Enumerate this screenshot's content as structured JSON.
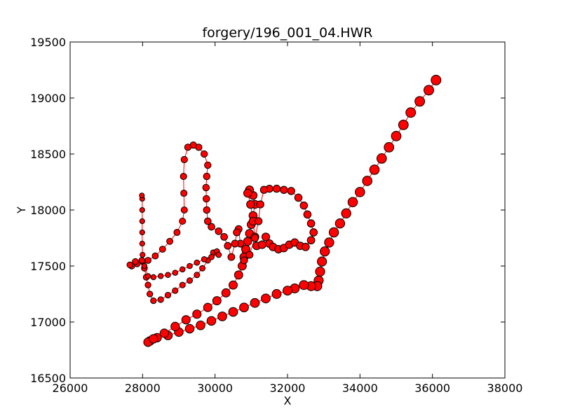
{
  "chart_data": {
    "type": "scatter",
    "title": "forgery/196_001_04.HWR",
    "xlabel": "X",
    "ylabel": "Y",
    "xlim": [
      26000,
      38000
    ],
    "ylim": [
      16500,
      19500
    ],
    "xticks": [
      26000,
      28000,
      30000,
      32000,
      34000,
      36000,
      38000
    ],
    "yticks": [
      16500,
      17000,
      17500,
      18000,
      18500,
      19000,
      19500
    ],
    "grid": false,
    "marker_face_color": "#ff0000",
    "marker_edge_color": "#000000",
    "line_color": "#ff0000",
    "series": [
      {
        "points": [
          [
            36100,
            19160
          ],
          [
            35900,
            19070
          ],
          [
            35650,
            18970
          ],
          [
            35400,
            18870
          ],
          [
            35200,
            18760
          ],
          [
            35000,
            18660
          ],
          [
            34800,
            18560
          ],
          [
            34600,
            18460
          ],
          [
            34400,
            18360
          ],
          [
            34200,
            18260
          ],
          [
            34000,
            18160
          ],
          [
            33800,
            18070
          ],
          [
            33620,
            17970
          ],
          [
            33450,
            17880
          ],
          [
            33280,
            17800
          ],
          [
            33150,
            17710
          ],
          [
            33030,
            17630
          ],
          [
            32950,
            17540
          ],
          [
            32900,
            17450
          ],
          [
            32860,
            17370
          ],
          [
            32820,
            17320
          ],
          [
            32650,
            17320
          ],
          [
            32450,
            17330
          ],
          [
            32200,
            17300
          ],
          [
            32000,
            17280
          ],
          [
            31700,
            17250
          ],
          [
            31400,
            17210
          ],
          [
            31100,
            17170
          ],
          [
            30800,
            17130
          ],
          [
            30500,
            17090
          ],
          [
            30200,
            17050
          ],
          [
            29900,
            17010
          ],
          [
            29600,
            16970
          ],
          [
            29300,
            16940
          ],
          [
            29000,
            16910
          ],
          [
            28700,
            16880
          ],
          [
            28400,
            16860
          ],
          [
            28200,
            16830
          ],
          [
            28150,
            16820
          ],
          [
            28300,
            16850
          ],
          [
            28600,
            16900
          ],
          [
            28900,
            16960
          ],
          [
            29200,
            17020
          ],
          [
            29500,
            17070
          ],
          [
            29800,
            17130
          ],
          [
            30050,
            17190
          ],
          [
            30300,
            17260
          ],
          [
            30500,
            17330
          ],
          [
            30650,
            17420
          ],
          [
            30750,
            17500
          ],
          [
            30800,
            17580
          ],
          [
            30850,
            17650
          ],
          [
            30900,
            17720
          ],
          [
            30950,
            17790
          ],
          [
            31000,
            17870
          ],
          [
            31050,
            17950
          ],
          [
            31100,
            18050
          ],
          [
            31050,
            18130
          ],
          [
            30950,
            18180
          ],
          [
            30900,
            18150
          ],
          [
            30980,
            18050
          ],
          [
            31050,
            17900
          ],
          [
            31100,
            17760
          ],
          [
            31150,
            17680
          ],
          [
            31300,
            17690
          ],
          [
            31400,
            17760
          ],
          [
            31500,
            17700
          ],
          [
            31600,
            17670
          ],
          [
            31750,
            17650
          ],
          [
            31900,
            17660
          ],
          [
            32050,
            17690
          ],
          [
            32200,
            17710
          ],
          [
            32350,
            17680
          ],
          [
            32500,
            17670
          ],
          [
            32650,
            17730
          ],
          [
            32720,
            17800
          ],
          [
            32650,
            17880
          ],
          [
            32550,
            17960
          ],
          [
            32450,
            18040
          ],
          [
            32300,
            18110
          ],
          [
            32100,
            18170
          ],
          [
            31900,
            18180
          ],
          [
            31700,
            18190
          ],
          [
            31500,
            18190
          ],
          [
            31350,
            18180
          ],
          [
            31250,
            18050
          ],
          [
            31200,
            17900
          ],
          [
            31100,
            17750
          ],
          [
            30950,
            17600
          ],
          [
            30800,
            17550
          ],
          [
            30700,
            17700
          ],
          [
            30650,
            17830
          ],
          [
            30600,
            17800
          ],
          [
            30550,
            17700
          ],
          [
            30450,
            17580
          ],
          [
            30350,
            17680
          ],
          [
            30250,
            17760
          ],
          [
            30100,
            17810
          ],
          [
            29900,
            17850
          ],
          [
            29800,
            17900
          ],
          [
            29770,
            18000
          ],
          [
            29760,
            18100
          ],
          [
            29750,
            18200
          ],
          [
            29770,
            18300
          ],
          [
            29800,
            18400
          ],
          [
            29700,
            18500
          ],
          [
            29550,
            18560
          ],
          [
            29400,
            18580
          ],
          [
            29250,
            18560
          ],
          [
            29150,
            18450
          ],
          [
            29130,
            18300
          ],
          [
            29140,
            18150
          ],
          [
            29150,
            18000
          ],
          [
            29100,
            17900
          ],
          [
            28950,
            17800
          ],
          [
            28750,
            17720
          ],
          [
            28550,
            17650
          ],
          [
            28350,
            17590
          ],
          [
            28150,
            17550
          ],
          [
            28000,
            17540
          ],
          [
            27850,
            17520
          ],
          [
            27700,
            17500
          ],
          [
            27650,
            17510
          ],
          [
            27800,
            17540
          ],
          [
            27980,
            17550
          ],
          [
            28050,
            17480
          ],
          [
            28100,
            17400
          ],
          [
            28150,
            17330
          ],
          [
            28200,
            17250
          ],
          [
            28300,
            17190
          ],
          [
            28500,
            17200
          ],
          [
            28700,
            17240
          ],
          [
            28900,
            17280
          ],
          [
            29100,
            17330
          ],
          [
            29300,
            17370
          ],
          [
            29500,
            17420
          ],
          [
            29650,
            17480
          ],
          [
            29800,
            17550
          ],
          [
            29950,
            17620
          ],
          [
            30050,
            17630
          ],
          [
            30100,
            17600
          ],
          [
            29900,
            17580
          ],
          [
            29700,
            17560
          ],
          [
            29500,
            17530
          ],
          [
            29300,
            17500
          ],
          [
            29100,
            17470
          ],
          [
            28900,
            17440
          ],
          [
            28700,
            17420
          ],
          [
            28500,
            17410
          ],
          [
            28300,
            17400
          ],
          [
            28150,
            17410
          ],
          [
            28050,
            17500
          ],
          [
            28000,
            17600
          ],
          [
            27990,
            17700
          ],
          [
            27990,
            17800
          ],
          [
            27990,
            17900
          ],
          [
            27990,
            18000
          ],
          [
            27990,
            18100
          ],
          [
            27980,
            18130
          ]
        ]
      }
    ]
  }
}
